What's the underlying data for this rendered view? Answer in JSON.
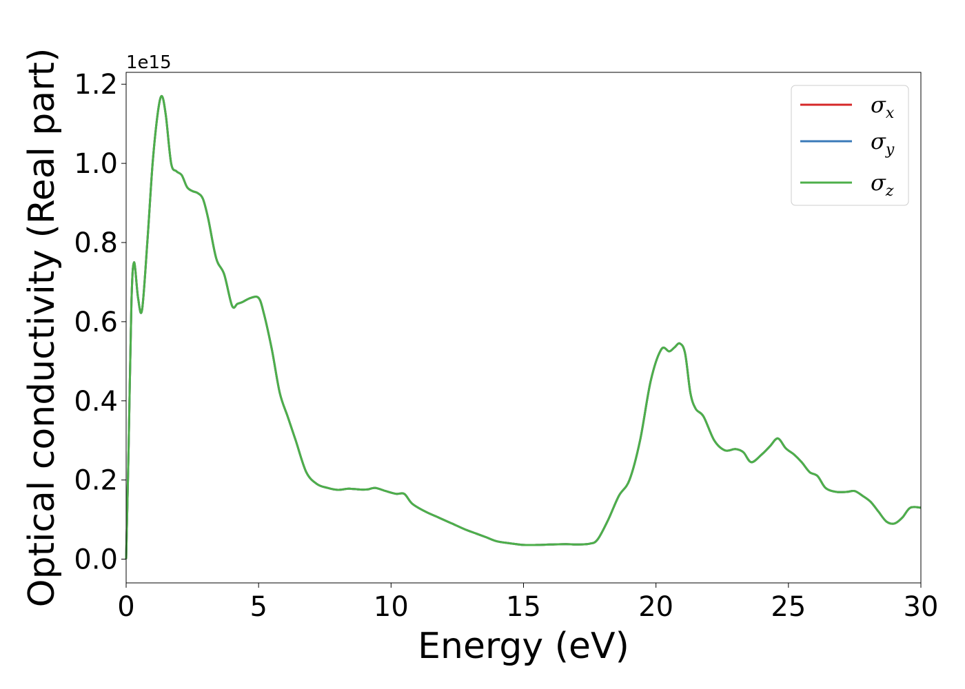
{
  "chart_data": {
    "type": "line",
    "xlabel": "Energy (eV)",
    "ylabel": "Optical conductivity (Real part)",
    "y_offset_label": "1e15",
    "xlim": [
      0,
      30
    ],
    "ylim": [
      -0.06,
      1.23
    ],
    "xticks": [
      0,
      5,
      10,
      15,
      20,
      25,
      30
    ],
    "xtick_labels": [
      "0",
      "5",
      "10",
      "15",
      "20",
      "25",
      "30"
    ],
    "yticks": [
      0.0,
      0.2,
      0.4,
      0.6,
      0.8,
      1.0,
      1.2
    ],
    "ytick_labels": [
      "0.0",
      "0.2",
      "0.4",
      "0.6",
      "0.8",
      "1.0",
      "1.2"
    ],
    "grid": false,
    "legend_position": "top-right",
    "series": [
      {
        "name": "σx",
        "symbol": "σ",
        "subscript": "x",
        "color": "#d62728"
      },
      {
        "name": "σy",
        "symbol": "σ",
        "subscript": "y",
        "color": "#3a7ab8"
      },
      {
        "name": "σz",
        "symbol": "σ",
        "subscript": "z",
        "color": "#4daf4a"
      }
    ],
    "x": [
      0,
      0.1,
      0.2,
      0.3,
      0.45,
      0.6,
      0.8,
      1.0,
      1.2,
      1.35,
      1.5,
      1.7,
      1.9,
      2.1,
      2.3,
      2.5,
      2.7,
      2.9,
      3.1,
      3.4,
      3.7,
      4.0,
      4.2,
      4.4,
      4.7,
      5.0,
      5.2,
      5.5,
      5.8,
      6.1,
      6.4,
      6.8,
      7.2,
      7.6,
      8.0,
      8.4,
      8.8,
      9.1,
      9.4,
      9.8,
      10.2,
      10.5,
      10.8,
      11.3,
      11.8,
      12.3,
      12.8,
      13.2,
      13.6,
      14.0,
      14.5,
      15.0,
      15.5,
      16.0,
      16.6,
      17.0,
      17.5,
      17.8,
      18.2,
      18.6,
      19.0,
      19.4,
      19.8,
      20.2,
      20.5,
      20.7,
      20.9,
      21.1,
      21.3,
      21.5,
      21.8,
      22.2,
      22.6,
      23.0,
      23.3,
      23.6,
      24.0,
      24.3,
      24.6,
      24.9,
      25.2,
      25.5,
      25.8,
      26.1,
      26.4,
      26.8,
      27.2,
      27.5,
      27.8,
      28.1,
      28.4,
      28.7,
      29.0,
      29.3,
      29.6,
      30.0
    ],
    "y": [
      0.0,
      0.3,
      0.65,
      0.75,
      0.66,
      0.63,
      0.8,
      1.0,
      1.13,
      1.17,
      1.12,
      1.0,
      0.98,
      0.97,
      0.94,
      0.93,
      0.925,
      0.91,
      0.86,
      0.76,
      0.72,
      0.64,
      0.645,
      0.65,
      0.66,
      0.66,
      0.62,
      0.53,
      0.42,
      0.36,
      0.3,
      0.22,
      0.19,
      0.18,
      0.175,
      0.178,
      0.176,
      0.176,
      0.18,
      0.172,
      0.165,
      0.165,
      0.14,
      0.12,
      0.105,
      0.09,
      0.075,
      0.065,
      0.055,
      0.045,
      0.04,
      0.036,
      0.036,
      0.037,
      0.038,
      0.037,
      0.039,
      0.05,
      0.1,
      0.16,
      0.2,
      0.3,
      0.45,
      0.53,
      0.525,
      0.535,
      0.545,
      0.52,
      0.42,
      0.38,
      0.36,
      0.3,
      0.275,
      0.278,
      0.27,
      0.245,
      0.265,
      0.285,
      0.305,
      0.28,
      0.265,
      0.245,
      0.22,
      0.21,
      0.18,
      0.17,
      0.17,
      0.172,
      0.16,
      0.145,
      0.12,
      0.095,
      0.09,
      0.105,
      0.13,
      0.13
    ]
  }
}
